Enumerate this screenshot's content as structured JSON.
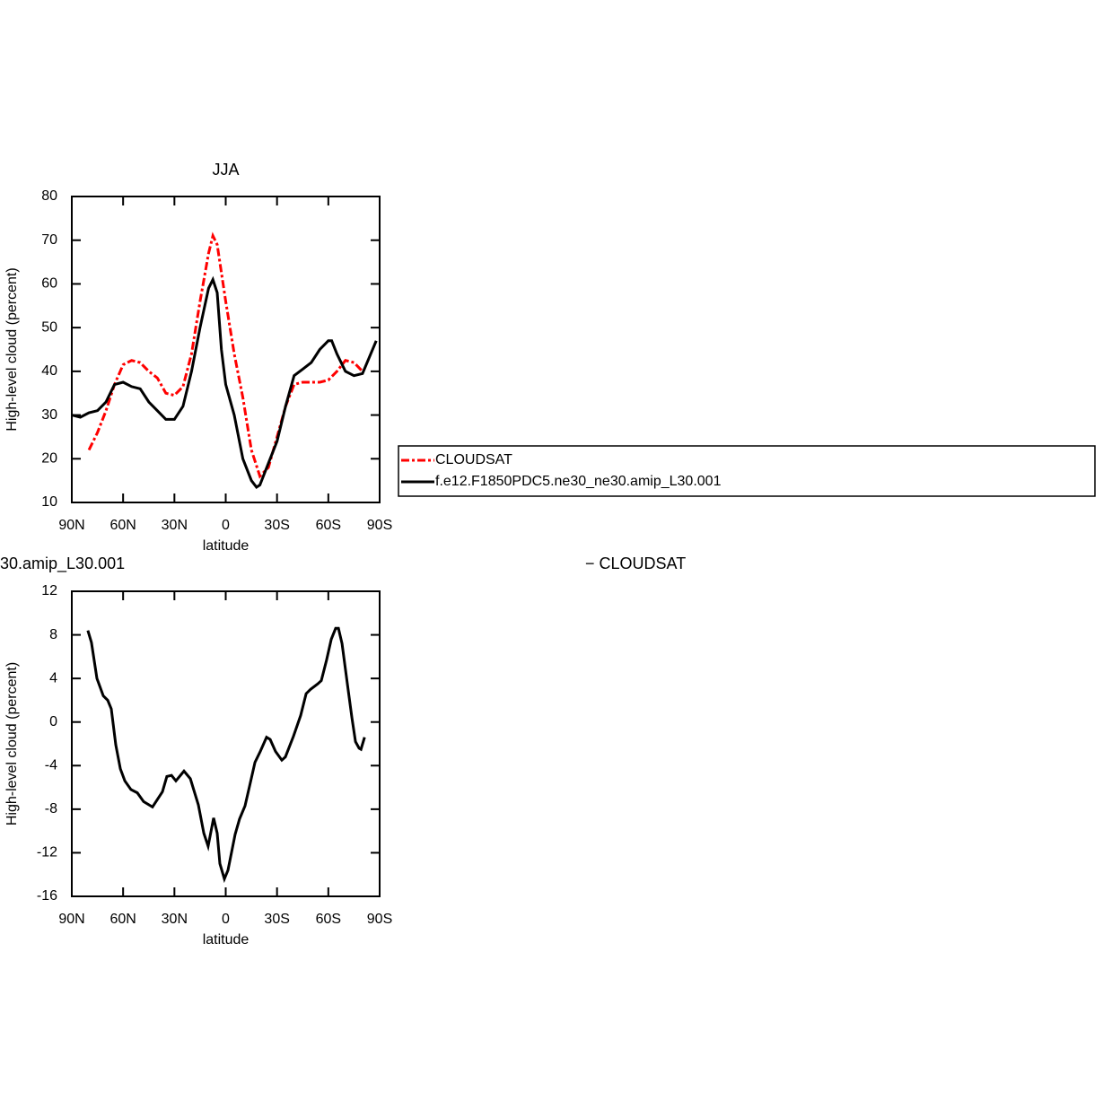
{
  "chart_data": [
    {
      "type": "line",
      "title": "JJA",
      "xlabel": "latitude",
      "ylabel": "High-level cloud (percent)",
      "xlim": [
        90,
        -90
      ],
      "xticks": [
        {
          "value": 90,
          "label": "90N"
        },
        {
          "value": 60,
          "label": "60N"
        },
        {
          "value": 30,
          "label": "30N"
        },
        0,
        {
          "value": -30,
          "label": "30S"
        },
        {
          "value": -60,
          "label": "60S"
        },
        {
          "value": -90,
          "label": "90S"
        }
      ],
      "ylim": [
        10,
        80
      ],
      "yticks": [
        10,
        20,
        30,
        40,
        50,
        60,
        70,
        80
      ],
      "legend": "right",
      "series": [
        {
          "name": "CLOUDSAT",
          "color": "#ff0000",
          "dashed": true,
          "x": [
            80,
            75,
            70,
            65,
            60,
            55,
            50,
            45,
            40,
            35,
            30,
            25,
            20,
            15,
            10,
            7.5,
            5,
            0,
            -5,
            -10,
            -15,
            -20,
            -25,
            -30,
            -35,
            -40,
            -45,
            -50,
            -55,
            -60,
            -65,
            -70,
            -75,
            -80
          ],
          "values": [
            22,
            26,
            31,
            37,
            41.5,
            42.5,
            42,
            40,
            38.5,
            35,
            34.5,
            36.5,
            44,
            56,
            67,
            71,
            69,
            56,
            44,
            34,
            22,
            16,
            18,
            25,
            32,
            37,
            37.5,
            37.5,
            37.5,
            38,
            40,
            42.5,
            42,
            40
          ]
        },
        {
          "name": "f.e12.F1850PDC5.ne30_ne30.amip_L30.001",
          "color": "#000000",
          "dashed": false,
          "x": [
            90,
            85,
            80,
            75,
            70,
            65,
            60,
            55,
            50,
            45,
            40,
            35,
            30,
            25,
            20,
            15,
            10,
            7.5,
            5,
            2.5,
            0,
            -5,
            -10,
            -15,
            -18,
            -20,
            -25,
            -30,
            -35,
            -40,
            -45,
            -50,
            -55,
            -60,
            -62,
            -65,
            -70,
            -75,
            -80,
            -88
          ],
          "values": [
            30,
            29.5,
            30.5,
            31,
            33,
            37,
            37.5,
            36.5,
            36,
            33,
            31,
            29,
            29,
            32,
            40,
            50,
            59,
            61,
            58,
            45,
            37,
            30,
            20,
            15,
            13.5,
            14,
            19,
            24,
            32,
            39,
            40.5,
            42,
            45,
            47,
            47,
            44,
            40,
            39,
            39.5,
            47
          ]
        }
      ]
    },
    {
      "type": "line",
      "title": [
        "30.amip_L30.001",
        "− CLOUDSAT"
      ],
      "xlabel": "latitude",
      "ylabel": "High-level cloud (percent)",
      "xlim": [
        90,
        -90
      ],
      "xticks": [
        {
          "value": 90,
          "label": "90N"
        },
        {
          "value": 60,
          "label": "60N"
        },
        {
          "value": 30,
          "label": "30N"
        },
        0,
        {
          "value": -30,
          "label": "30S"
        },
        {
          "value": -60,
          "label": "60S"
        },
        {
          "value": -90,
          "label": "90S"
        }
      ],
      "ylim": [
        -16,
        12
      ],
      "yticks": [
        -16,
        -12,
        -8,
        -4,
        0,
        4,
        8,
        12
      ],
      "color": "#000000",
      "x": [
        80.6,
        78.5,
        75.3,
        71.6,
        69.0,
        66.9,
        64.3,
        61.6,
        59.0,
        55.4,
        51.7,
        48.0,
        42.8,
        37.0,
        34.4,
        31.7,
        29.1,
        24.4,
        20.7,
        16.0,
        12.8,
        10.3,
        7.1,
        5.0,
        3.4,
        0.8,
        -1.3,
        -5.5,
        -8.1,
        -11.3,
        -13.9,
        -17.1,
        -20.2,
        -23.9,
        -26.0,
        -29.1,
        -32.8,
        -34.9,
        -39.6,
        -43.8,
        -47.0,
        -49.6,
        -53.8,
        -55.9,
        -59.0,
        -61.7,
        -64.3,
        -65.9,
        -68.0,
        -71.2,
        -73.8,
        -75.9,
        -78.0,
        -79.1,
        -81.2
      ],
      "values": [
        8.4,
        7.3,
        4.0,
        2.4,
        2.0,
        1.2,
        -2.1,
        -4.3,
        -5.4,
        -6.2,
        -6.5,
        -7.3,
        -7.8,
        -6.4,
        -5.0,
        -4.9,
        -5.4,
        -4.5,
        -5.2,
        -7.6,
        -10.2,
        -11.4,
        -8.8,
        -10.2,
        -13,
        -14.4,
        -13.6,
        -10.3,
        -8.9,
        -7.7,
        -5.9,
        -3.7,
        -2.7,
        -1.4,
        -1.6,
        -2.7,
        -3.5,
        -3.2,
        -1.3,
        0.6,
        2.6,
        3.0,
        3.5,
        3.8,
        5.7,
        7.6,
        8.6,
        8.6,
        7.2,
        3.4,
        0.4,
        -1.8,
        -2.4,
        -2.5,
        -1.4
      ]
    }
  ]
}
